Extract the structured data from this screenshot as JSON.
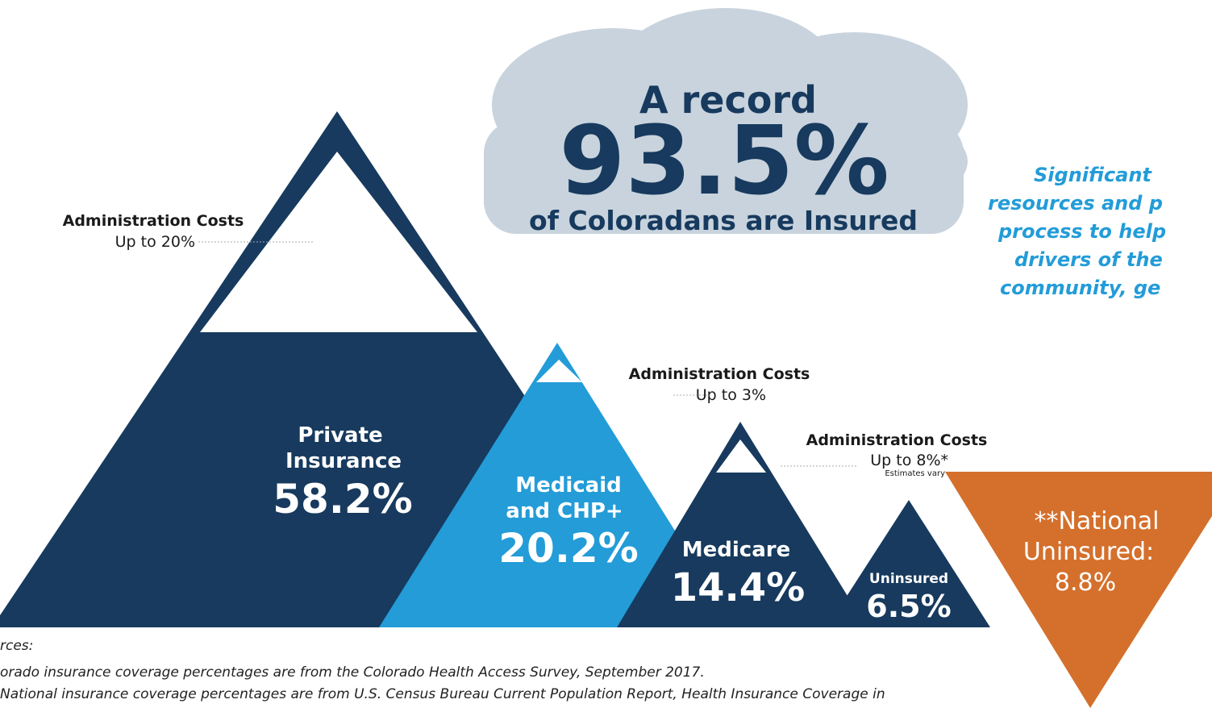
{
  "cloud": {
    "line1": "A record",
    "big": "93.5%",
    "line3": "of Coloradans are Insured"
  },
  "mountains": [
    {
      "name1": "Private",
      "name2": "Insurance",
      "value": "58.2%"
    },
    {
      "name1": "Medicaid",
      "name2": "and CHP+",
      "value": "20.2%"
    },
    {
      "name1": "Medicare",
      "value": "14.4%"
    },
    {
      "name1": "Uninsured",
      "value": "6.5%"
    }
  ],
  "admin_costs": [
    {
      "title": "Administration Costs",
      "amount": "Up to 20%"
    },
    {
      "title": "Administration Costs",
      "amount": "Up to 3%"
    },
    {
      "title": "Administration Costs",
      "amount": "Up to 8%*",
      "note": "Estimates vary"
    }
  ],
  "national": {
    "line1": "**National",
    "line2": "Uninsured:",
    "line3": "8.8%"
  },
  "side_text": [
    "Significant",
    "resources and p",
    "process to help",
    "drivers of the",
    "community, ge"
  ],
  "sources": [
    "rces:",
    "orado insurance coverage percentages are from the Colorado Health Access Survey, September 2017.",
    "National insurance coverage percentages are from U.S. Census Bureau Current Population Report, Health Insurance Coverage in"
  ]
}
